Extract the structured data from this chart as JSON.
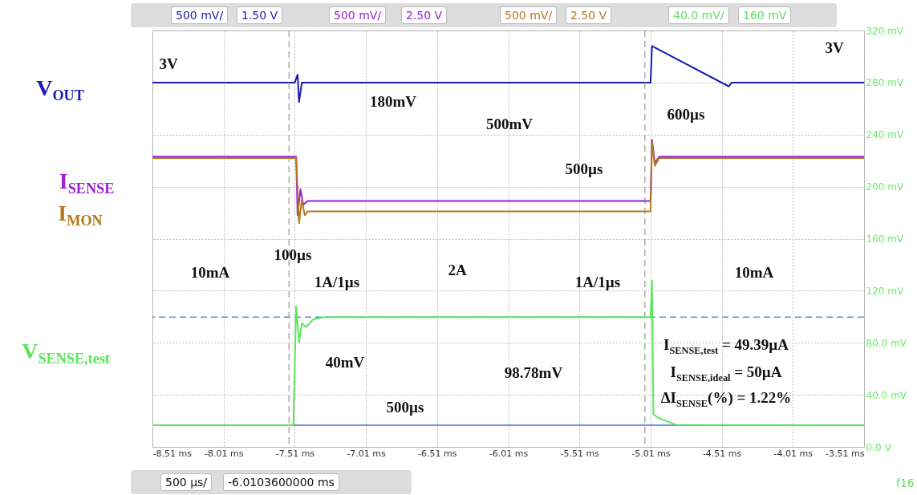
{
  "chart_data": {
    "type": "line",
    "xlim": [
      -8.51,
      -3.51
    ],
    "ylim": [
      0,
      320
    ],
    "xticks": [
      {
        "value": -8.51,
        "label": "-8.51 ms"
      },
      {
        "value": -8.01,
        "label": "-8.01 ms"
      },
      {
        "value": -7.51,
        "label": "-7.51 ms"
      },
      {
        "value": -7.01,
        "label": "-7.01 ms"
      },
      {
        "value": -6.51,
        "label": "-6.51 ms"
      },
      {
        "value": -6.01,
        "label": "-6.01 ms"
      },
      {
        "value": -5.51,
        "label": "-5.51 ms"
      },
      {
        "value": -5.01,
        "label": "-5.01 ms"
      },
      {
        "value": -4.51,
        "label": "-4.51 ms"
      },
      {
        "value": -4.01,
        "label": "-4.01 ms"
      },
      {
        "value": -3.51,
        "label": "-3.51 ms"
      }
    ],
    "yticks": [
      {
        "value": 0,
        "label": "0.0 V"
      },
      {
        "value": 40,
        "label": "40.0 mV"
      },
      {
        "value": 80,
        "label": "80.0 mV"
      },
      {
        "value": 120,
        "label": "120 mV"
      },
      {
        "value": 160,
        "label": "160 mV"
      },
      {
        "value": 200,
        "label": "200 mV"
      },
      {
        "value": 240,
        "label": "240 mV"
      },
      {
        "value": 280,
        "label": "280 mV"
      },
      {
        "value": 320,
        "label": "320 mV"
      }
    ],
    "grid": true,
    "legend": false,
    "line_style": "solid",
    "marker": "none",
    "series": [
      {
        "name": "V$_{OUT}$",
        "color": "#1a1ab0",
        "x": [
          -8.51,
          -7.51,
          -7.49,
          -7.48,
          -7.46,
          -5.01,
          -5.0,
          -4.46,
          -4.44,
          -3.51
        ],
        "values": [
          280,
          280,
          286,
          265,
          280,
          280,
          308,
          277,
          280,
          280
        ]
      },
      {
        "name": "I$_{SENSE}$",
        "color": "#9a1fd6",
        "x": [
          -8.51,
          -7.5,
          -7.49,
          -7.47,
          -7.45,
          -7.42,
          -5.01,
          -5.0,
          -4.98,
          -4.95,
          -3.51
        ],
        "values": [
          223,
          223,
          178,
          198,
          186,
          189,
          189,
          236,
          218,
          223,
          223
        ]
      },
      {
        "name": "I$_{MON}$",
        "color": "#b5781c",
        "x": [
          -8.51,
          -7.5,
          -7.48,
          -7.46,
          -7.44,
          -7.42,
          -5.01,
          -5.0,
          -4.98,
          -4.95,
          -3.51
        ],
        "values": [
          222,
          222,
          172,
          190,
          178,
          181,
          181,
          234,
          216,
          222,
          222
        ]
      },
      {
        "name": "V$_{SENSE,test}$",
        "color": "#5ce65c",
        "x": [
          -8.51,
          -7.52,
          -7.51,
          -7.5,
          -7.48,
          -7.46,
          -7.43,
          -7.38,
          -7.3,
          -5.01,
          -5.0,
          -4.99,
          -4.95,
          -4.83,
          -3.51
        ],
        "values": [
          16.6,
          16.6,
          61,
          108,
          80,
          95,
          92,
          98,
          99.7,
          99.7,
          128,
          25,
          22,
          17,
          16.6
        ]
      }
    ],
    "ref_lines": [
      {
        "axis": "y",
        "value": 99.7,
        "line_style": "dashed",
        "color": "#5b8fe0"
      },
      {
        "axis": "y",
        "value": 16.6,
        "line_style": "solid",
        "color": "#3a78d8"
      },
      {
        "axis": "x",
        "value": -7.55,
        "line_style": "dashed",
        "color": "#aaaaaa"
      },
      {
        "axis": "x",
        "value": -5.05,
        "line_style": "dashed",
        "color": "#aaaaaa"
      }
    ],
    "annotations": [
      "3V",
      "3V",
      "180mV",
      "600µs",
      "500mV",
      "500µs",
      "100µs",
      "10mA",
      "2A",
      "1A/1µs",
      "1A/1µs",
      "10mA",
      "40mV",
      "500µs",
      "98.78mV",
      "I$_{SENSE,test}$ = 49.39µA",
      "I$_{SENSE,ideal}$ = 50µA",
      "ΔI$_{SENSE}$(%) = 1.22%",
      "500 mV/",
      "1.50 V",
      "500 mV/",
      "2.50 V",
      "500 mV/",
      "2.50 V",
      "40.0 mV/",
      "160 mV",
      "500 µs/",
      "-6.0103600000 ms",
      "f16"
    ]
  }
}
